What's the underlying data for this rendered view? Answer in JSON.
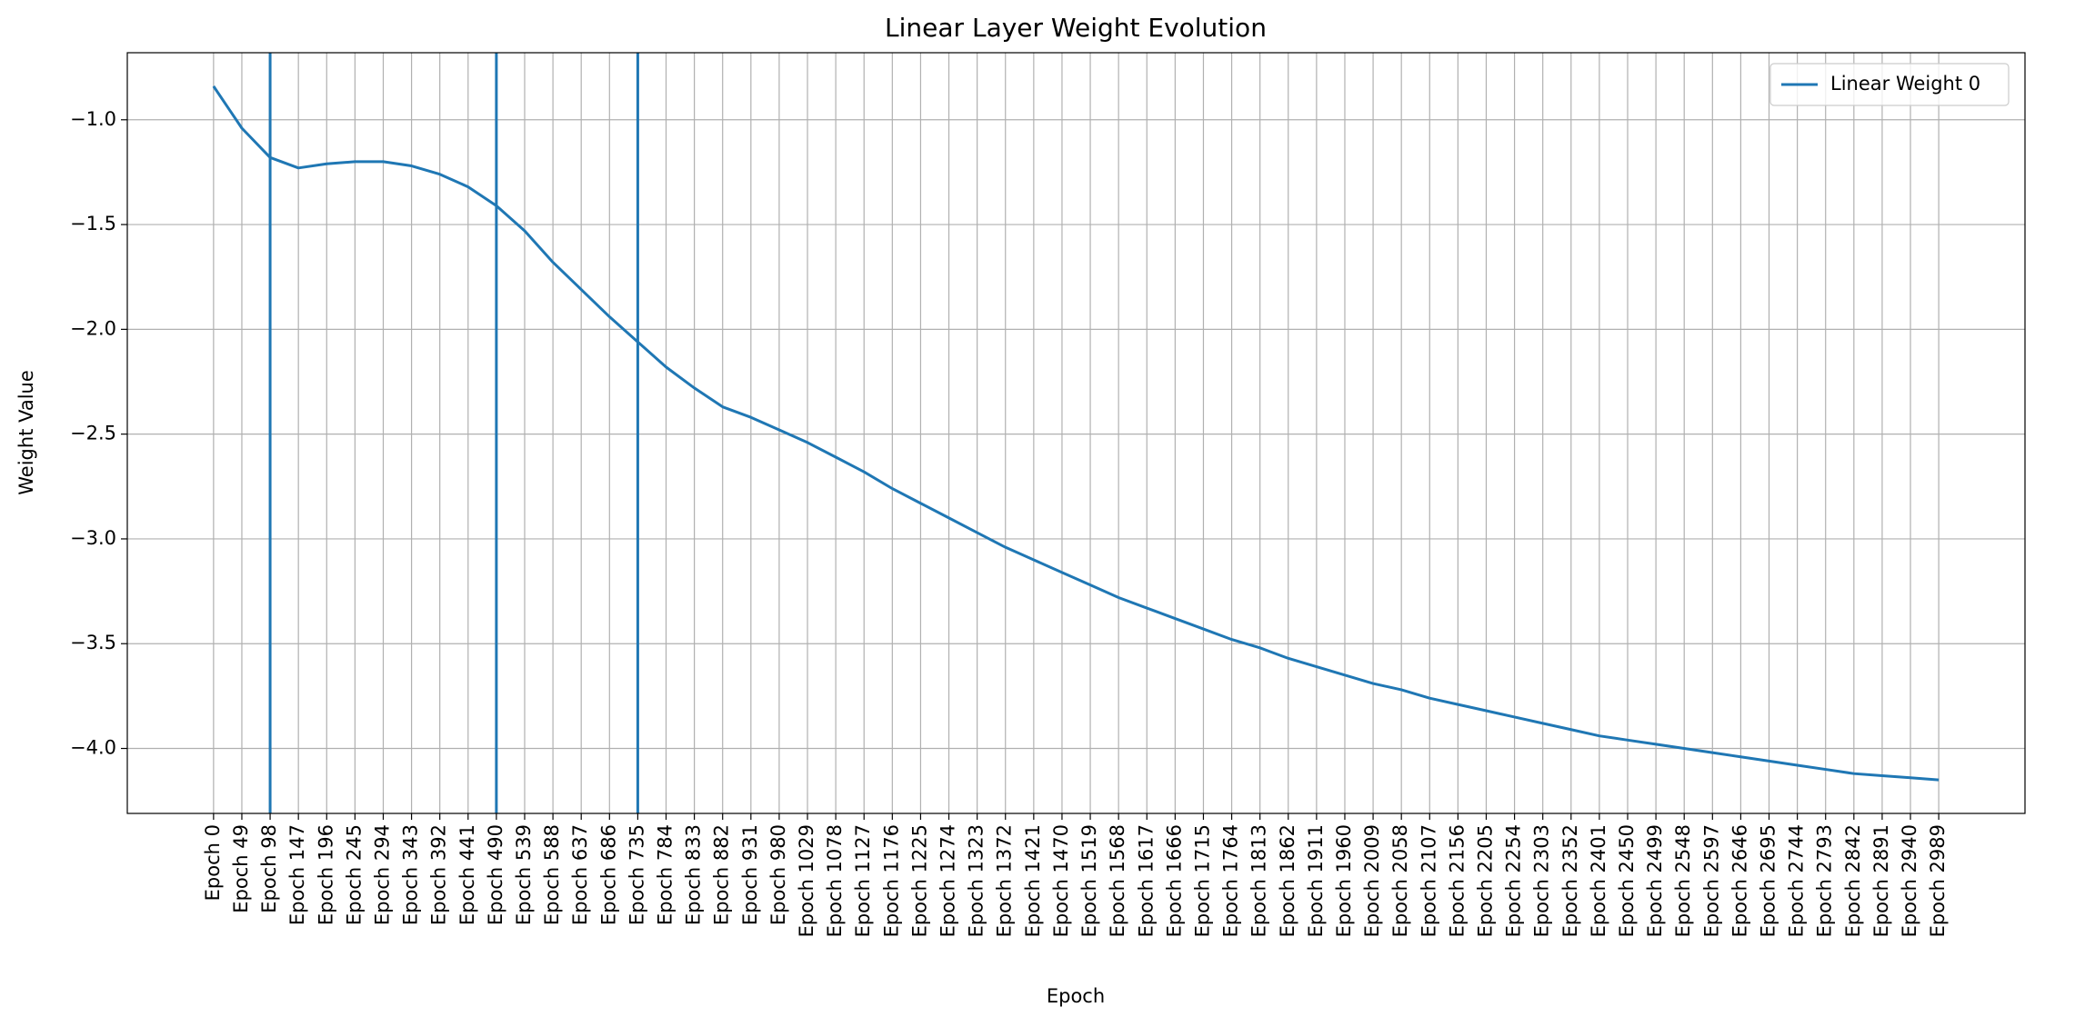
{
  "chart_data": {
    "type": "line",
    "title": "Linear Layer Weight Evolution",
    "xlabel": "Epoch",
    "ylabel": "Weight Value",
    "categories": [
      "Epoch 0",
      "Epoch 49",
      "Epoch 98",
      "Epoch 147",
      "Epoch 196",
      "Epoch 245",
      "Epoch 294",
      "Epoch 343",
      "Epoch 392",
      "Epoch 441",
      "Epoch 490",
      "Epoch 539",
      "Epoch 588",
      "Epoch 637",
      "Epoch 686",
      "Epoch 735",
      "Epoch 784",
      "Epoch 833",
      "Epoch 882",
      "Epoch 931",
      "Epoch 980",
      "Epoch 1029",
      "Epoch 1078",
      "Epoch 1127",
      "Epoch 1176",
      "Epoch 1225",
      "Epoch 1274",
      "Epoch 1323",
      "Epoch 1372",
      "Epoch 1421",
      "Epoch 1470",
      "Epoch 1519",
      "Epoch 1568",
      "Epoch 1617",
      "Epoch 1666",
      "Epoch 1715",
      "Epoch 1764",
      "Epoch 1813",
      "Epoch 1862",
      "Epoch 1911",
      "Epoch 1960",
      "Epoch 2009",
      "Epoch 2058",
      "Epoch 2107",
      "Epoch 2156",
      "Epoch 2205",
      "Epoch 2254",
      "Epoch 2303",
      "Epoch 2352",
      "Epoch 2401",
      "Epoch 2450",
      "Epoch 2499",
      "Epoch 2548",
      "Epoch 2597",
      "Epoch 2646",
      "Epoch 2695",
      "Epoch 2744",
      "Epoch 2793",
      "Epoch 2842",
      "Epoch 2891",
      "Epoch 2940",
      "Epoch 2989"
    ],
    "series": [
      {
        "name": "Linear Weight 0",
        "color": "#1f77b4",
        "values": [
          -0.84,
          -1.04,
          -1.18,
          -1.23,
          -1.21,
          -1.2,
          -1.2,
          -1.22,
          -1.26,
          -1.32,
          -1.41,
          -1.53,
          -1.68,
          -1.81,
          -1.94,
          -2.06,
          -2.18,
          -2.28,
          -2.37,
          -2.42,
          -2.48,
          -2.54,
          -2.61,
          -2.68,
          -2.76,
          -2.83,
          -2.9,
          -2.97,
          -3.04,
          -3.1,
          -3.16,
          -3.22,
          -3.28,
          -3.33,
          -3.38,
          -3.43,
          -3.48,
          -3.52,
          -3.57,
          -3.61,
          -3.65,
          -3.69,
          -3.72,
          -3.76,
          -3.79,
          -3.82,
          -3.85,
          -3.88,
          -3.91,
          -3.94,
          -3.96,
          -3.98,
          -4.0,
          -4.02,
          -4.04,
          -4.06,
          -4.08,
          -4.1,
          -4.12,
          -4.13,
          -4.14,
          -4.15
        ]
      }
    ],
    "vlines": [
      "Epoch 98",
      "Epoch 490",
      "Epoch 735"
    ],
    "ylim": [
      -4.31,
      -0.68
    ],
    "yticks": [
      {
        "value": -4.0,
        "label": "−4.0"
      },
      {
        "value": -3.5,
        "label": "−3.5"
      },
      {
        "value": -3.0,
        "label": "−3.0"
      },
      {
        "value": -2.5,
        "label": "−2.5"
      },
      {
        "value": -2.0,
        "label": "−2.0"
      },
      {
        "value": -1.5,
        "label": "−1.5"
      },
      {
        "value": -1.0,
        "label": "−1.0"
      }
    ],
    "grid": true,
    "legend": "upper right"
  }
}
